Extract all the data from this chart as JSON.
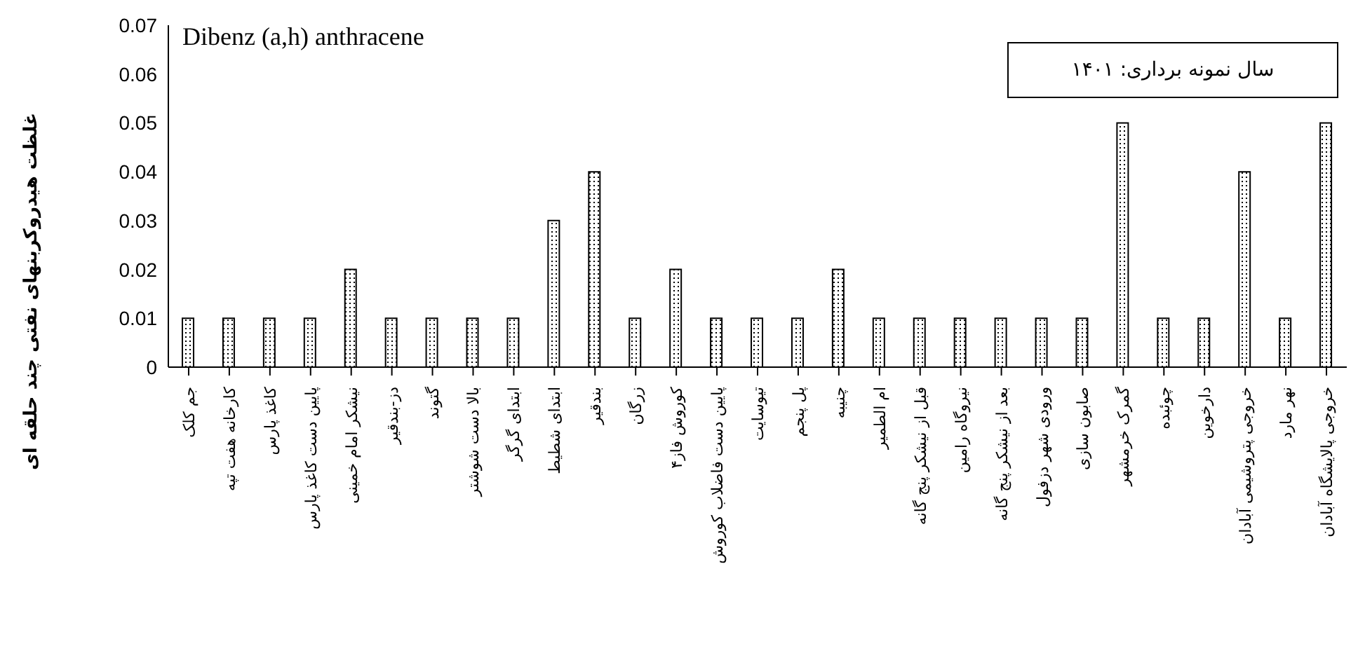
{
  "chart_data": {
    "type": "bar",
    "title": "Dibenz (a,h) anthracene",
    "ylabel": "غلظت هیدروکربنهای نفتی چند حلقه ای",
    "annotations": [
      "سال نمونه برداری: ۱۴۰۱"
    ],
    "categories": [
      "جم کلک",
      "کارخانه هفت تپه",
      "کاغذ پارس",
      "پایین دست کاغذ پارس",
      "نیشکر امام خمینی",
      "دز-بندقیر",
      "گتوند",
      "بالا دست شوشتر",
      "ابتدای گرگر",
      "ابتدای شطیط",
      "بندقیر",
      "زرگان",
      "کوروش فاز۴",
      "پایین دست فاضلاب کوروش",
      "تیوسایت",
      "پل پنجم",
      "چنیبه",
      "ام الطمیر",
      "قبل از نیشکر پنج گانه",
      "نیروگاه رامین",
      "بعد از نیشکر پنج گانه",
      "ورودی شهر دزفول",
      "صابون سازی",
      "گمرک خرمشهر",
      "چوئبده",
      "دارخوین",
      "خروجی پتروشیمی آبادان",
      "نهر مارد",
      "خروجی پالایشگاه آبادان"
    ],
    "values": [
      0.01,
      0.01,
      0.01,
      0.01,
      0.02,
      0.01,
      0.01,
      0.01,
      0.01,
      0.03,
      0.04,
      0.01,
      0.02,
      0.01,
      0.01,
      0.01,
      0.02,
      0.01,
      0.01,
      0.01,
      0.01,
      0.01,
      0.01,
      0.05,
      0.01,
      0.01,
      0.04,
      0.01,
      0.05
    ],
    "color": "#000000",
    "ylim": [
      0,
      0.07
    ],
    "yticks": [
      0,
      0.01,
      0.02,
      0.03,
      0.04,
      0.05,
      0.06,
      0.07
    ],
    "grid": false,
    "legend": false
  }
}
